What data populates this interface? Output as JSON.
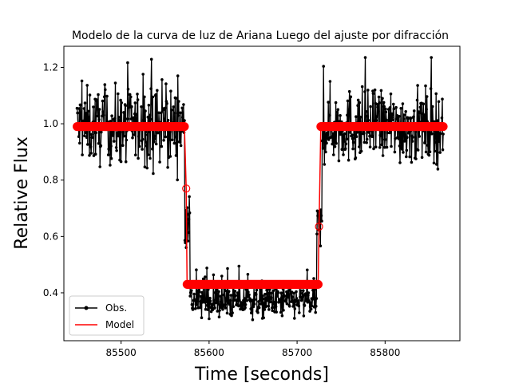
{
  "chart_data": {
    "type": "line",
    "title": "Modelo de la curva de luz de Ariana Luego del ajuste por difracción",
    "xlabel": "Time [seconds]",
    "ylabel": "Relative Flux",
    "xlim": [
      85435,
      85885
    ],
    "ylim": [
      0.23,
      1.275
    ],
    "x_ticks": [
      85500,
      85600,
      85700,
      85800
    ],
    "y_ticks": [
      0.4,
      0.6,
      0.8,
      1.0,
      1.2
    ],
    "x_tick_labels": [
      "85500",
      "85600",
      "85700",
      "85800"
    ],
    "y_tick_labels": [
      "0.4",
      "0.6",
      "0.8",
      "1.0",
      "1.2"
    ],
    "grid": false,
    "legend": {
      "position": "lower-left",
      "entries": [
        "Obs.",
        "Model"
      ]
    },
    "colors": {
      "observed": "#000000",
      "model": "#ff0000"
    },
    "series": [
      {
        "name": "Obs.",
        "kind": "line-marker",
        "x_start": 85450,
        "x_end": 85866,
        "x_step": 0.5,
        "segments": [
          {
            "x_from": 85450,
            "x_to": 85572,
            "mean": 0.99,
            "spread": 0.075
          },
          {
            "x_from": 85572,
            "x_to": 85578,
            "mean": 0.7,
            "spread": 0.08
          },
          {
            "x_from": 85578,
            "x_to": 85722,
            "mean": 0.37,
            "spread": 0.035
          },
          {
            "x_from": 85722,
            "x_to": 85728,
            "mean": 0.62,
            "spread": 0.06
          },
          {
            "x_from": 85728,
            "x_to": 85866,
            "mean": 0.99,
            "spread": 0.075
          }
        ]
      },
      {
        "name": "Model",
        "kind": "step",
        "points": [
          {
            "x": 85450,
            "y": 0.99
          },
          {
            "x": 85572,
            "y": 0.99
          },
          {
            "x": 85574,
            "y": 0.77
          },
          {
            "x": 85575,
            "y": 0.43
          },
          {
            "x": 85724,
            "y": 0.43
          },
          {
            "x": 85725,
            "y": 0.635
          },
          {
            "x": 85727,
            "y": 0.99
          },
          {
            "x": 85866,
            "y": 0.99
          }
        ],
        "transition_markers": [
          {
            "x": 85574,
            "y": 0.77
          },
          {
            "x": 85725,
            "y": 0.635
          }
        ]
      }
    ]
  }
}
